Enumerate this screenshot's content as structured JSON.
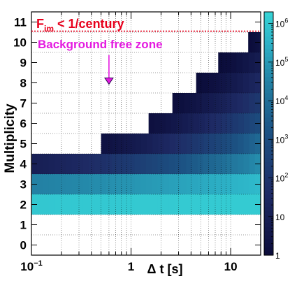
{
  "chart_data": {
    "type": "heatmap",
    "xlabel": "Δ t [s]",
    "ylabel": "Multiplicity",
    "x_scale": "log",
    "xlim": [
      0.1,
      20
    ],
    "ylim": [
      -0.5,
      11.5
    ],
    "x_ticks_major": [
      {
        "value": 0.1,
        "base": "10",
        "exp": "−1"
      },
      {
        "value": 1,
        "base": "1",
        "exp": ""
      },
      {
        "value": 10,
        "base": "10",
        "exp": ""
      }
    ],
    "y_ticks": [
      0,
      1,
      2,
      3,
      4,
      5,
      6,
      7,
      8,
      9,
      10,
      11
    ],
    "z_scale": "log",
    "zlim": [
      1,
      2000000
    ],
    "z_ticks": [
      {
        "value": 1,
        "base": "1",
        "exp": ""
      },
      {
        "value": 10,
        "base": "10",
        "exp": ""
      },
      {
        "value": 100,
        "base": "10",
        "exp": "2"
      },
      {
        "value": 1000,
        "base": "10",
        "exp": "3"
      },
      {
        "value": 10000,
        "base": "10",
        "exp": "4"
      },
      {
        "value": 100000,
        "base": "10",
        "exp": "5"
      },
      {
        "value": 1000000,
        "base": "10",
        "exp": "6"
      }
    ],
    "grid": true,
    "rows": [
      {
        "multiplicity": 2,
        "x_start": 0.1,
        "x_end": 20,
        "log10_count_start": 6.0,
        "log10_count_end": 6.1
      },
      {
        "multiplicity": 3,
        "x_start": 0.1,
        "x_end": 20,
        "log10_count_start": 4.5,
        "log10_count_end": 5.7
      },
      {
        "multiplicity": 4,
        "x_start": 0.1,
        "x_end": 20,
        "log10_count_start": 1.0,
        "log10_count_end": 4.8
      },
      {
        "multiplicity": 5,
        "x_start": 0.5,
        "x_end": 20,
        "log10_count_start": 0.3,
        "log10_count_end": 3.9
      },
      {
        "multiplicity": 6,
        "x_start": 1.5,
        "x_end": 20,
        "log10_count_start": 0.2,
        "log10_count_end": 3.0
      },
      {
        "multiplicity": 7,
        "x_start": 2.6,
        "x_end": 20,
        "log10_count_start": 0.1,
        "log10_count_end": 2.2
      },
      {
        "multiplicity": 8,
        "x_start": 4.5,
        "x_end": 20,
        "log10_count_start": 0.0,
        "log10_count_end": 1.5
      },
      {
        "multiplicity": 9,
        "x_start": 7.5,
        "x_end": 20,
        "log10_count_start": 0.0,
        "log10_count_end": 0.9
      },
      {
        "multiplicity": 10,
        "x_start": 15,
        "x_end": 20,
        "log10_count_start": 0.0,
        "log10_count_end": 0.4
      }
    ],
    "threshold_line": {
      "multiplicity": 10.55,
      "color": "#e8001c"
    },
    "annotations": {
      "threshold_main": "F",
      "threshold_sub": "im",
      "threshold_rest": " < 1/century",
      "zone": "Background free zone",
      "arrow_target": {
        "x": 0.6,
        "y": 8.0
      }
    },
    "colors": {
      "annotation_red": "#e8001c",
      "annotation_magenta": "#e41ae0",
      "palette_low": "#0b0c3a",
      "palette_high": "#37d4d6"
    }
  }
}
